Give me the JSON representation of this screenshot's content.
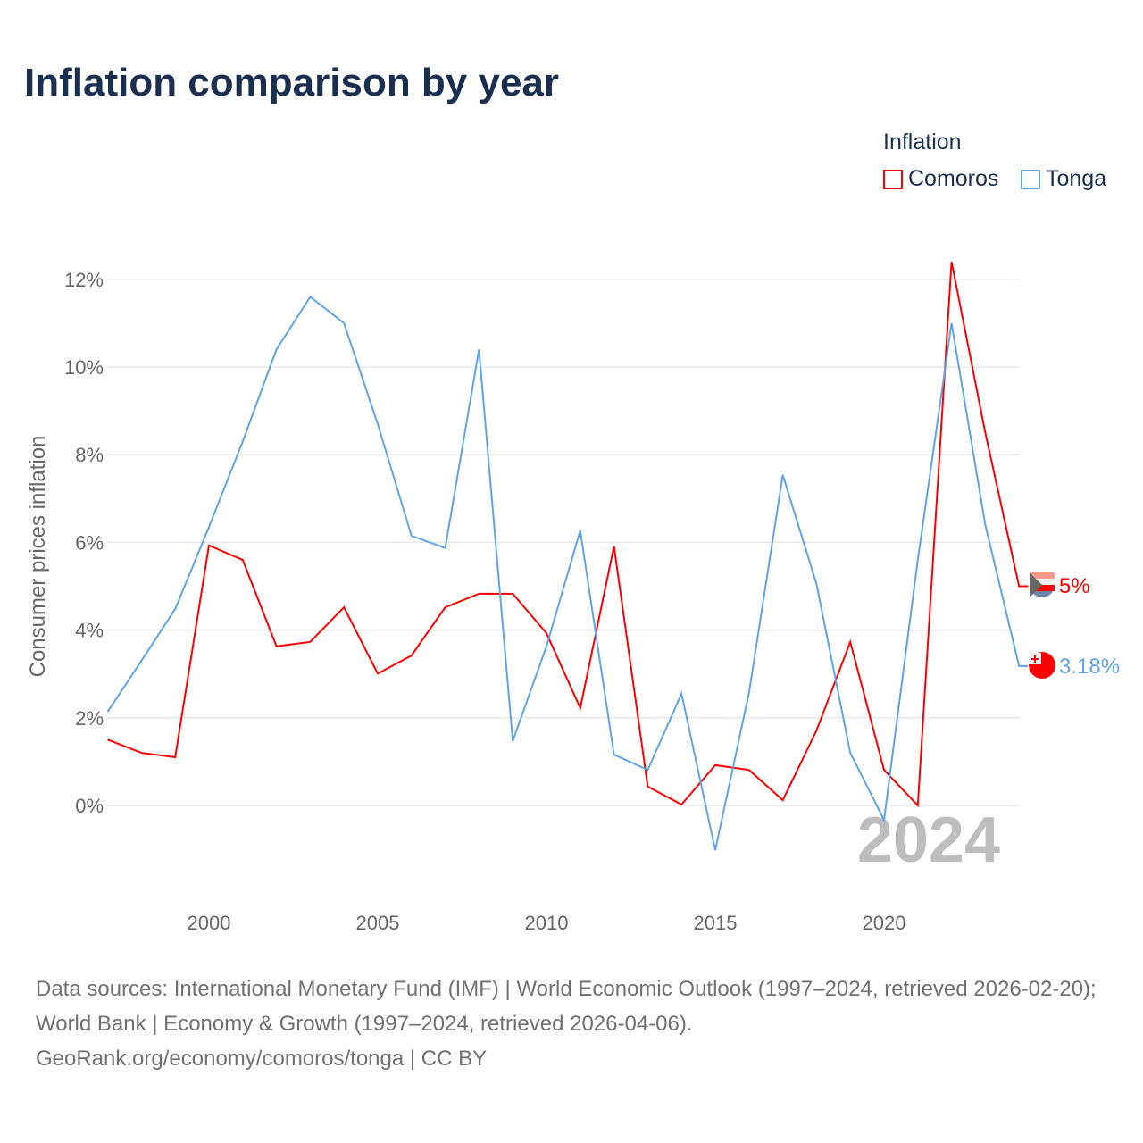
{
  "chart_data": {
    "type": "line",
    "title": "Inflation comparison by year",
    "ylabel": "Consumer prices inflation",
    "xlabel": "",
    "legend_title": "Inflation",
    "legend_position": "top-right",
    "x": [
      1997,
      1998,
      1999,
      2000,
      2001,
      2002,
      2003,
      2004,
      2005,
      2006,
      2007,
      2008,
      2009,
      2010,
      2011,
      2012,
      2013,
      2014,
      2015,
      2016,
      2017,
      2018,
      2019,
      2020,
      2021,
      2022,
      2023,
      2024
    ],
    "series": [
      {
        "name": "Comoros",
        "color": "#ff0000",
        "end_label": "5%",
        "values": [
          1.5,
          1.2,
          1.1,
          5.93,
          5.6,
          3.63,
          3.73,
          4.52,
          3.01,
          3.42,
          4.52,
          4.83,
          4.83,
          3.93,
          2.22,
          5.91,
          0.43,
          0.02,
          0.92,
          0.81,
          0.12,
          1.71,
          3.73,
          0.81,
          0.0,
          12.4,
          8.5,
          5.0
        ]
      },
      {
        "name": "Tonga",
        "color": "#5ea4ea",
        "end_label": "3.18%",
        "values": [
          2.14,
          3.3,
          4.48,
          6.35,
          8.3,
          10.4,
          11.6,
          11.0,
          8.7,
          6.15,
          5.87,
          10.4,
          1.47,
          3.63,
          6.27,
          1.16,
          0.81,
          2.55,
          -1.02,
          2.57,
          7.54,
          5.05,
          1.2,
          -0.33,
          5.6,
          11.0,
          6.4,
          3.18
        ]
      }
    ],
    "xticks": [
      2000,
      2005,
      2010,
      2015,
      2020
    ],
    "yticks": [
      0,
      2,
      4,
      6,
      8,
      10,
      12
    ],
    "ytick_labels": [
      "0%",
      "2%",
      "4%",
      "6%",
      "8%",
      "10%",
      "12%"
    ],
    "xlim": [
      1997,
      2024
    ],
    "ylim": [
      -2,
      13
    ],
    "grid": true,
    "watermark_year": "2024"
  },
  "footer": {
    "sources": "Data sources: International Monetary Fund (IMF) | World Economic Outlook (1997–2024, retrieved 2026-02-20); World Bank | Economy & Growth (1997–2024, retrieved 2026-04-06).",
    "credit": "GeoRank.org/economy/comoros/tonga | CC BY"
  }
}
